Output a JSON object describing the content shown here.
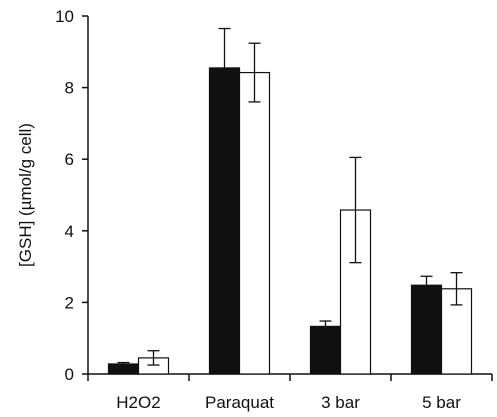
{
  "chart_data": {
    "type": "bar",
    "title": "",
    "xlabel": "",
    "ylabel": "[GSH] (µmol/g cell)",
    "categories": [
      "H2O2",
      "Paraquat",
      "3 bar",
      "5 bar"
    ],
    "ylim": [
      0,
      10
    ],
    "yticks": [
      0,
      2,
      4,
      6,
      8,
      10
    ],
    "legend": "none",
    "grid": false,
    "series": [
      {
        "color": "#111111",
        "values": [
          0.28,
          8.55,
          1.33,
          2.48
        ],
        "errors": [
          0.04,
          1.1,
          0.15,
          0.25
        ]
      },
      {
        "color": "#ffffff",
        "values": [
          0.45,
          8.42,
          4.58,
          2.38
        ],
        "errors": [
          0.2,
          0.82,
          1.47,
          0.45
        ]
      }
    ]
  }
}
